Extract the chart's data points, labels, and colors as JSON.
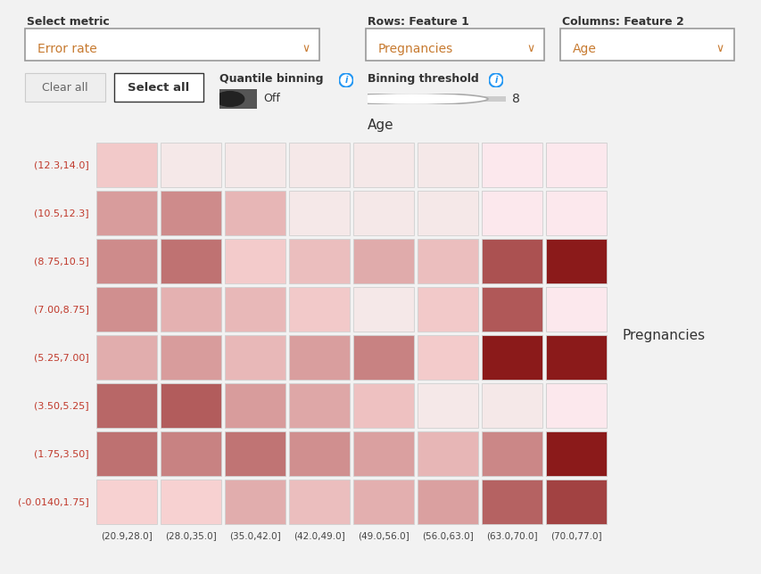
{
  "title": "Age",
  "ylabel": "Pregnancies",
  "col_labels": [
    "(20.9,28.0]",
    "(28.0,35.0]",
    "(35.0,42.0]",
    "(42.0,49.0]",
    "(49.0,56.0]",
    "(56.0,63.0]",
    "(63.0,70.0]",
    "(70.0,77.0]"
  ],
  "row_labels": [
    "(12.3,14.0]",
    "(10.5,12.3]",
    "(8.75,10.5]",
    "(7.00,8.75]",
    "(5.25,7.00]",
    "(3.50,5.25]",
    "(1.75,3.50]",
    "(-0.0140,1.75]"
  ],
  "values": [
    [
      7,
      0,
      0,
      0,
      0,
      0,
      0,
      0
    ],
    [
      31,
      40,
      17,
      0,
      0,
      0,
      0,
      0
    ],
    [
      40,
      53,
      6,
      13,
      23,
      13,
      71,
      100
    ],
    [
      38,
      20,
      16,
      7,
      0,
      7,
      67,
      0
    ],
    [
      22,
      31,
      16,
      30,
      45,
      6,
      100,
      100
    ],
    [
      59,
      65,
      31,
      25,
      11,
      0,
      0,
      0
    ],
    [
      54,
      45,
      52,
      38,
      29,
      17,
      42,
      100
    ],
    [
      3,
      3,
      22,
      13,
      21,
      29,
      62,
      79
    ]
  ],
  "hatched": [
    [
      false,
      false,
      false,
      false,
      false,
      false,
      true,
      true
    ],
    [
      false,
      false,
      false,
      false,
      false,
      false,
      true,
      true
    ],
    [
      false,
      false,
      false,
      false,
      false,
      false,
      false,
      false
    ],
    [
      false,
      false,
      false,
      false,
      false,
      false,
      false,
      true
    ],
    [
      false,
      false,
      false,
      false,
      false,
      false,
      false,
      false
    ],
    [
      false,
      false,
      false,
      false,
      false,
      false,
      false,
      true
    ],
    [
      false,
      false,
      false,
      false,
      false,
      false,
      false,
      false
    ],
    [
      false,
      false,
      false,
      false,
      false,
      false,
      false,
      false
    ]
  ],
  "bg_color": "#f2f2f2",
  "cell_border": "#d0d0d0",
  "hatch_fill": "#fce8ed",
  "hatch_stripe": "#f9b8c8",
  "color_0": "#f9e4e4",
  "color_100": "#8b1a1a",
  "text_dark": "#444444",
  "text_light": "#ffffff",
  "row_label_color": "#c0392b",
  "col_label_color": "#444444",
  "title_color": "#333333",
  "ui_label_color": "#333333",
  "dropdown_text": "#c77a30",
  "dropdown_border": "#999999",
  "select_metric_label": "Select metric",
  "error_rate_text": "Error rate",
  "rows_label": "Rows: Feature 1",
  "pregnancies_text": "Pregnancies",
  "cols_label": "Columns: Feature 2",
  "age_text": "Age",
  "quantile_label": "Quantile binning",
  "off_label": "Off",
  "binning_label": "Binning threshold",
  "binning_value": "8",
  "clear_all": "Clear all",
  "select_all": "Select all"
}
